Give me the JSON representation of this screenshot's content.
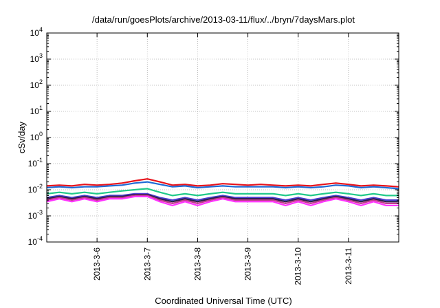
{
  "chart_data": {
    "type": "line",
    "title": "/data/run/goesPlots/archive/2013-03-11/flux/../bryn/7daysMars.plot",
    "xlabel": "Coordinated Universal Time (UTC)",
    "ylabel": "cSv/day",
    "yscale": "log",
    "ylim": [
      0.0001,
      10000
    ],
    "xlim": [
      "2013-03-05 00:00",
      "2013-03-12 00:00"
    ],
    "grid": true,
    "y_ticks": [
      {
        "base": "10",
        "exp": "-4",
        "value": 0.0001
      },
      {
        "base": "10",
        "exp": "-3",
        "value": 0.001
      },
      {
        "base": "10",
        "exp": "-2",
        "value": 0.01
      },
      {
        "base": "10",
        "exp": "-1",
        "value": 0.1
      },
      {
        "base": "10",
        "exp": "0",
        "value": 1
      },
      {
        "base": "10",
        "exp": "1",
        "value": 10
      },
      {
        "base": "10",
        "exp": "2",
        "value": 100
      },
      {
        "base": "10",
        "exp": "3",
        "value": 1000
      },
      {
        "base": "10",
        "exp": "4",
        "value": 10000
      }
    ],
    "x_ticks": [
      "2013-3-6",
      "2013-3-7",
      "2013-3-8",
      "2013-3-9",
      "2013-3-10",
      "2013-3-11"
    ],
    "x": [
      "2013-03-05 00:00",
      "2013-03-05 06:00",
      "2013-03-05 12:00",
      "2013-03-05 18:00",
      "2013-03-06 00:00",
      "2013-03-06 06:00",
      "2013-03-06 12:00",
      "2013-03-06 18:00",
      "2013-03-07 00:00",
      "2013-03-07 06:00",
      "2013-03-07 12:00",
      "2013-03-07 18:00",
      "2013-03-08 00:00",
      "2013-03-08 06:00",
      "2013-03-08 12:00",
      "2013-03-08 18:00",
      "2013-03-09 00:00",
      "2013-03-09 06:00",
      "2013-03-09 12:00",
      "2013-03-09 18:00",
      "2013-03-10 00:00",
      "2013-03-10 06:00",
      "2013-03-10 12:00",
      "2013-03-10 18:00",
      "2013-03-11 00:00",
      "2013-03-11 06:00",
      "2013-03-11 12:00",
      "2013-03-11 18:00",
      "2013-03-12 00:00"
    ],
    "series": [
      {
        "color": "#e8121b",
        "values": [
          0.014,
          0.015,
          0.014,
          0.016,
          0.015,
          0.016,
          0.018,
          0.022,
          0.026,
          0.02,
          0.015,
          0.016,
          0.014,
          0.015,
          0.017,
          0.016,
          0.015,
          0.016,
          0.015,
          0.014,
          0.015,
          0.014,
          0.016,
          0.018,
          0.016,
          0.014,
          0.015,
          0.014,
          0.013
        ]
      },
      {
        "color": "#1e6bd6",
        "values": [
          0.012,
          0.013,
          0.012,
          0.013,
          0.013,
          0.014,
          0.015,
          0.018,
          0.02,
          0.016,
          0.013,
          0.014,
          0.012,
          0.013,
          0.014,
          0.013,
          0.013,
          0.013,
          0.013,
          0.012,
          0.013,
          0.012,
          0.013,
          0.015,
          0.014,
          0.012,
          0.013,
          0.012,
          0.011
        ]
      },
      {
        "color": "#20c98a",
        "values": [
          0.007,
          0.008,
          0.007,
          0.008,
          0.007,
          0.008,
          0.009,
          0.01,
          0.011,
          0.008,
          0.006,
          0.007,
          0.006,
          0.007,
          0.008,
          0.007,
          0.007,
          0.007,
          0.007,
          0.006,
          0.007,
          0.006,
          0.007,
          0.008,
          0.007,
          0.006,
          0.007,
          0.006,
          0.006
        ]
      },
      {
        "color": "#4a3bd0",
        "values": [
          0.005,
          0.006,
          0.005,
          0.006,
          0.005,
          0.006,
          0.006,
          0.007,
          0.007,
          0.005,
          0.004,
          0.005,
          0.004,
          0.005,
          0.006,
          0.005,
          0.005,
          0.005,
          0.005,
          0.004,
          0.005,
          0.004,
          0.005,
          0.006,
          0.005,
          0.004,
          0.005,
          0.004,
          0.004
        ]
      },
      {
        "color": "#2b1f4a",
        "values": [
          0.0045,
          0.0055,
          0.0045,
          0.0055,
          0.0045,
          0.0055,
          0.0055,
          0.0065,
          0.0065,
          0.0045,
          0.0035,
          0.0045,
          0.0035,
          0.0045,
          0.0055,
          0.0045,
          0.0045,
          0.0045,
          0.0045,
          0.0035,
          0.0045,
          0.0035,
          0.0045,
          0.0055,
          0.0045,
          0.0035,
          0.0045,
          0.0035,
          0.0035
        ]
      },
      {
        "color": "#c23a8c",
        "values": [
          0.004,
          0.005,
          0.004,
          0.005,
          0.004,
          0.005,
          0.005,
          0.006,
          0.006,
          0.004,
          0.003,
          0.004,
          0.003,
          0.004,
          0.005,
          0.004,
          0.004,
          0.004,
          0.004,
          0.003,
          0.004,
          0.003,
          0.004,
          0.005,
          0.004,
          0.003,
          0.004,
          0.003,
          0.003
        ]
      },
      {
        "color": "#ff33ff",
        "values": [
          0.0035,
          0.0045,
          0.0035,
          0.0045,
          0.0035,
          0.0045,
          0.0045,
          0.0055,
          0.0055,
          0.0035,
          0.0025,
          0.0035,
          0.0025,
          0.0035,
          0.0045,
          0.0035,
          0.0035,
          0.0035,
          0.0035,
          0.0025,
          0.0035,
          0.0025,
          0.0035,
          0.0045,
          0.0035,
          0.0025,
          0.0035,
          0.0025,
          0.0025
        ]
      }
    ]
  }
}
